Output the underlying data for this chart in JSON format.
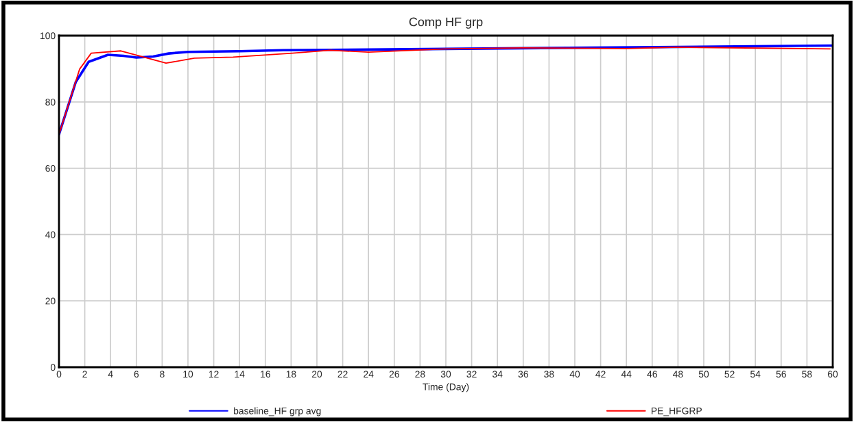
{
  "chart_data": {
    "type": "line",
    "title": "Comp HF grp",
    "xlabel": "Time (Day)",
    "xlim": [
      0,
      60
    ],
    "xticks": [
      0,
      2,
      4,
      6,
      8,
      10,
      12,
      14,
      16,
      18,
      20,
      22,
      24,
      26,
      28,
      30,
      32,
      34,
      36,
      38,
      40,
      42,
      44,
      46,
      48,
      50,
      52,
      54,
      56,
      58,
      60
    ],
    "ylim": [
      0,
      100
    ],
    "yticks": [
      0,
      20,
      40,
      60,
      80,
      100
    ],
    "grid": true,
    "legend": "bottom",
    "line_style": "solid",
    "series": [
      {
        "name": "baseline_HF grp avg",
        "color": "#0000ff",
        "x": [
          0,
          1.3,
          2.3,
          3.8,
          5,
          6,
          7.3,
          8.5,
          10,
          14,
          17.4,
          21,
          30,
          48,
          60
        ],
        "values": [
          70.2,
          86,
          92.1,
          94.2,
          93.9,
          93.4,
          93.7,
          94.6,
          95.1,
          95.3,
          95.6,
          95.7,
          96.0,
          96.6,
          97.0
        ]
      },
      {
        "name": "PE_HFGRP",
        "color": "#ff0000",
        "x": [
          0,
          1.6,
          2.5,
          4.8,
          8.3,
          10.5,
          13.5,
          18.1,
          21,
          24,
          30,
          36,
          44,
          48,
          59.8
        ],
        "values": [
          70.2,
          89.9,
          94.7,
          95.4,
          91.7,
          93.2,
          93.5,
          94.7,
          95.6,
          95.0,
          96.0,
          96.3,
          96.1,
          96.5,
          96.0
        ]
      }
    ]
  }
}
